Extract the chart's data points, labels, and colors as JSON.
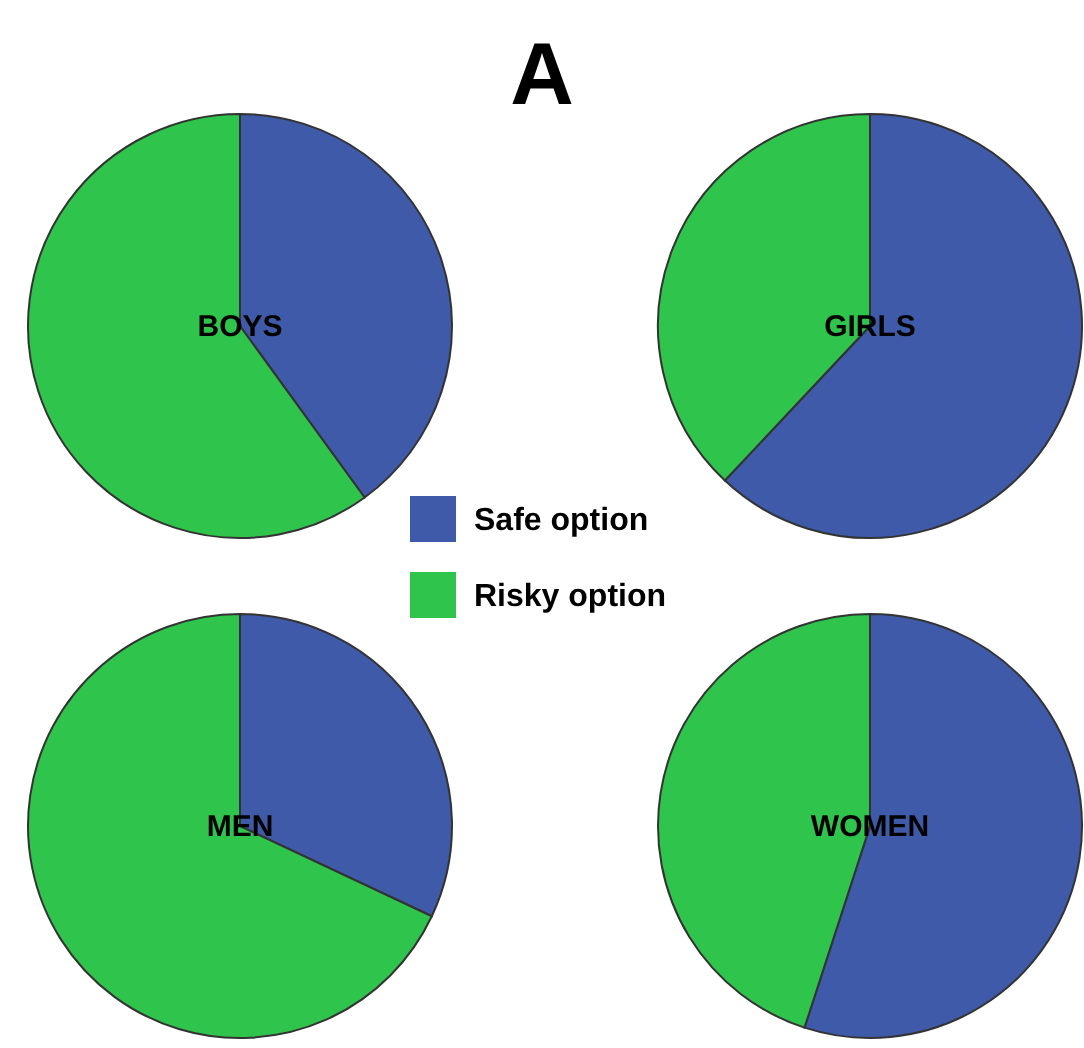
{
  "chart_data": [
    {
      "type": "pie",
      "title": "BOYS",
      "annotations": [
        "A"
      ],
      "categories": [
        "Safe option",
        "Risky option"
      ],
      "values": [
        40,
        60
      ],
      "colors": [
        "#3f5aa8",
        "#2fc44c"
      ],
      "legend": "bottom right"
    },
    {
      "type": "pie",
      "title": "GIRLS",
      "categories": [
        null,
        null
      ],
      "values": [
        62,
        38
      ],
      "colors": [
        "#3f5aa8",
        "#2fc44c"
      ]
    },
    {
      "type": "pie",
      "title": "MEN",
      "categories": [
        null,
        null
      ],
      "values": [
        32,
        68
      ],
      "colors": [
        "#3f5aa8",
        "#2fc44c"
      ]
    },
    {
      "type": "pie",
      "title": "WOMEN",
      "categories": [
        null,
        null
      ],
      "values": [
        55,
        45
      ],
      "colors": [
        "#3f5aa8",
        "#2fc44c"
      ]
    }
  ]
}
